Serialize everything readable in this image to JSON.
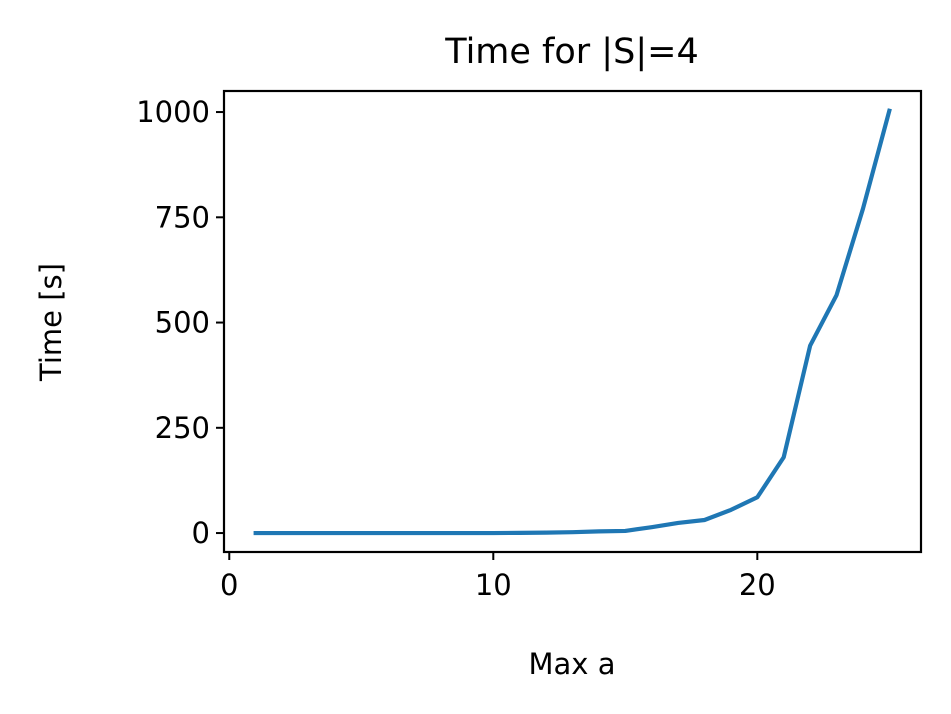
{
  "chart_data": {
    "type": "line",
    "title": "Time for |S|=4",
    "xlabel": "Max a",
    "ylabel": "Time [s]",
    "xlim": [
      -0.2,
      26.2
    ],
    "ylim": [
      -45,
      1050
    ],
    "xticks": [
      0,
      10,
      20
    ],
    "yticks": [
      0,
      250,
      500,
      750,
      1000
    ],
    "grid": false,
    "legend": "none",
    "series": [
      {
        "color": "#1f77b4",
        "x": [
          1,
          2,
          3,
          4,
          5,
          6,
          7,
          8,
          9,
          10,
          11,
          12,
          13,
          14,
          15,
          16,
          17,
          18,
          19,
          20,
          21,
          22,
          23,
          24,
          25
        ],
        "y": [
          0,
          0,
          0,
          0,
          0,
          0,
          0,
          0,
          0,
          0,
          0.5,
          1,
          2,
          4,
          5,
          14,
          24,
          31,
          55,
          85,
          180,
          445,
          565,
          770,
          1003
        ]
      }
    ]
  }
}
